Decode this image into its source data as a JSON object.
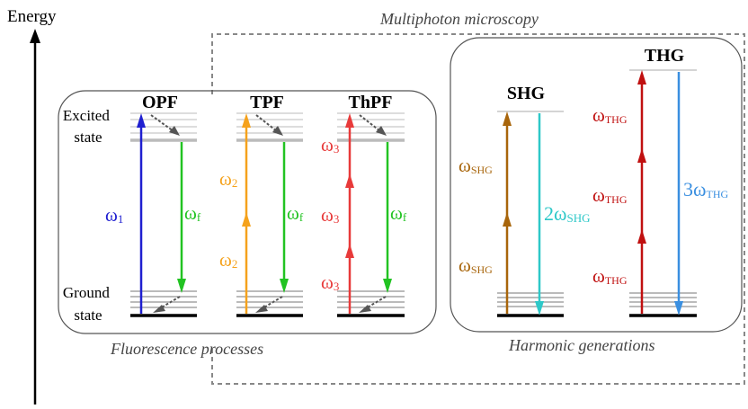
{
  "axis": {
    "label": "Energy"
  },
  "groups": {
    "multiphoton": "Multiphoton microscopy",
    "fluorescence": "Fluorescence processes",
    "harmonic": "Harmonic generations"
  },
  "levels": {
    "excited": [
      "Excited",
      "state"
    ],
    "ground": [
      "Ground",
      "state"
    ]
  },
  "processes": {
    "opf": {
      "title": "OPF",
      "excitation": "ω",
      "excitation_sub": "1",
      "emission": "ω",
      "emission_sub": "f"
    },
    "tpf": {
      "title": "TPF",
      "excitation": "ω",
      "excitation_sub": "2",
      "emission": "ω",
      "emission_sub": "f"
    },
    "thpf": {
      "title": "ThPF",
      "excitation": "ω",
      "excitation_sub": "3",
      "emission": "ω",
      "emission_sub": "f"
    },
    "shg": {
      "title": "SHG",
      "excitation": "ω",
      "excitation_sub": "SHG",
      "emission": "2ω",
      "emission_sub": "SHG"
    },
    "thg": {
      "title": "THG",
      "excitation": "ω",
      "excitation_sub": "THG",
      "emission": "3ω",
      "emission_sub": "THG"
    }
  },
  "colors": {
    "opf_excitation": "#1f1fd0",
    "emission_green": "#22c322",
    "tpf_excitation": "#f5a21c",
    "thpf_excitation": "#e83a3a",
    "shg_excitation": "#a8650b",
    "shg_emission": "#2ec8c8",
    "thg_excitation": "#c01010",
    "thg_emission": "#3a8fe0",
    "relax_gray": "#555555",
    "box_border": "#555555"
  }
}
